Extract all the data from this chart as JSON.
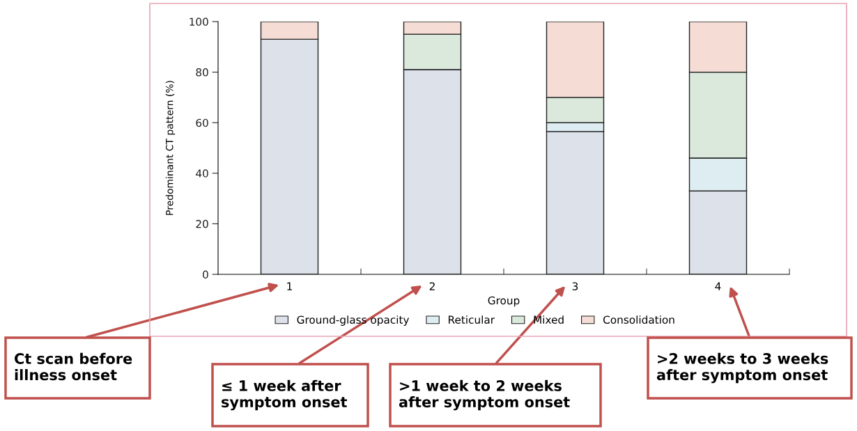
{
  "chart_data": {
    "type": "bar",
    "stacked": true,
    "xlabel": "Group",
    "ylabel": "Predominant CT pattern (%)",
    "categories": [
      "1",
      "2",
      "3",
      "4"
    ],
    "series": [
      {
        "name": "Ground-glass opacity",
        "color": "#dce1ea",
        "values": [
          93,
          81,
          56.5,
          33
        ]
      },
      {
        "name": "Reticular",
        "color": "#deedf2",
        "values": [
          0,
          0,
          3.5,
          13
        ]
      },
      {
        "name": "Mixed",
        "color": "#dbe8dc",
        "values": [
          0,
          14,
          10,
          34
        ]
      },
      {
        "name": "Consolidation",
        "color": "#f5ddd6",
        "values": [
          7,
          5,
          30,
          20
        ]
      }
    ],
    "ylim": [
      0,
      100
    ],
    "yticks": [
      0,
      20,
      40,
      60,
      80,
      100
    ],
    "legend": "bottom",
    "grid": false,
    "annotations": [
      "Ct scan before\nillness onset",
      "≤ 1 week after\nsymptom onset",
      ">1 week to 2 weeks\nafter symptom onset",
      ">2 weeks to 3 weeks\nafter symptom onset"
    ]
  }
}
